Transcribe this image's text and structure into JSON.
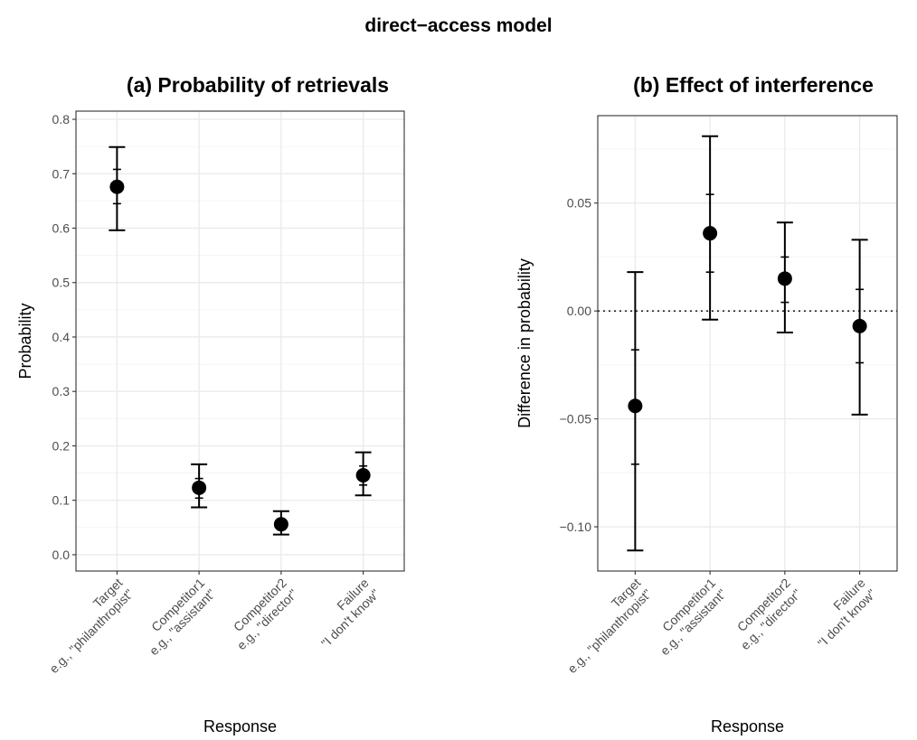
{
  "figure": {
    "title": "direct−access model"
  },
  "chart_data": [
    {
      "type": "scatter",
      "panel_title": "(a) Probability of retrievals",
      "xlabel": "Response",
      "ylabel": "Probability",
      "categories": [
        {
          "line1": "Target",
          "line2": "e.g., \"philanthropist\""
        },
        {
          "line1": "Competitor1",
          "line2": "e.g., \"assistant\""
        },
        {
          "line1": "Competitor2",
          "line2": "e.g., \"director\""
        },
        {
          "line1": "Failure",
          "line2": "\"I don't know\""
        }
      ],
      "ylim": [
        -0.03,
        0.815
      ],
      "yticks": [
        0.0,
        0.1,
        0.2,
        0.3,
        0.4,
        0.5,
        0.6,
        0.7,
        0.8
      ],
      "ytick_labels": [
        "0.0",
        "0.1",
        "0.2",
        "0.3",
        "0.4",
        "0.5",
        "0.6",
        "0.7",
        "0.8"
      ],
      "grid": true,
      "zero_line": false,
      "points": [
        {
          "mean": 0.676,
          "outer_lo": 0.596,
          "outer_hi": 0.749,
          "inner_lo": 0.645,
          "inner_hi": 0.708
        },
        {
          "mean": 0.123,
          "outer_lo": 0.087,
          "outer_hi": 0.166,
          "inner_lo": 0.104,
          "inner_hi": 0.14
        },
        {
          "mean": 0.056,
          "outer_lo": 0.037,
          "outer_hi": 0.08,
          "inner_lo": 0.046,
          "inner_hi": 0.066
        },
        {
          "mean": 0.146,
          "outer_lo": 0.109,
          "outer_hi": 0.188,
          "inner_lo": 0.128,
          "inner_hi": 0.163
        }
      ]
    },
    {
      "type": "scatter",
      "panel_title": "(b) Effect of interference",
      "xlabel": "Response",
      "ylabel": "Difference in probability",
      "categories": [
        {
          "line1": "Target",
          "line2": "e.g., \"philanthropist\""
        },
        {
          "line1": "Competitor1",
          "line2": "e.g., \"assistant\""
        },
        {
          "line1": "Competitor2",
          "line2": "e.g., \"director\""
        },
        {
          "line1": "Failure",
          "line2": "\"I don't know\""
        }
      ],
      "ylim": [
        -0.1205,
        0.0905
      ],
      "yticks": [
        -0.1,
        -0.05,
        0.0,
        0.05
      ],
      "ytick_labels": [
        "−0.10",
        "−0.05",
        "0.00",
        "0.05"
      ],
      "grid": true,
      "zero_line": true,
      "points": [
        {
          "mean": -0.044,
          "outer_lo": -0.111,
          "outer_hi": 0.018,
          "inner_lo": -0.071,
          "inner_hi": -0.018
        },
        {
          "mean": 0.036,
          "outer_lo": -0.004,
          "outer_hi": 0.081,
          "inner_lo": 0.018,
          "inner_hi": 0.054
        },
        {
          "mean": 0.015,
          "outer_lo": -0.01,
          "outer_hi": 0.041,
          "inner_lo": 0.004,
          "inner_hi": 0.025
        },
        {
          "mean": -0.007,
          "outer_lo": -0.048,
          "outer_hi": 0.033,
          "inner_lo": -0.024,
          "inner_hi": 0.01
        }
      ]
    }
  ]
}
